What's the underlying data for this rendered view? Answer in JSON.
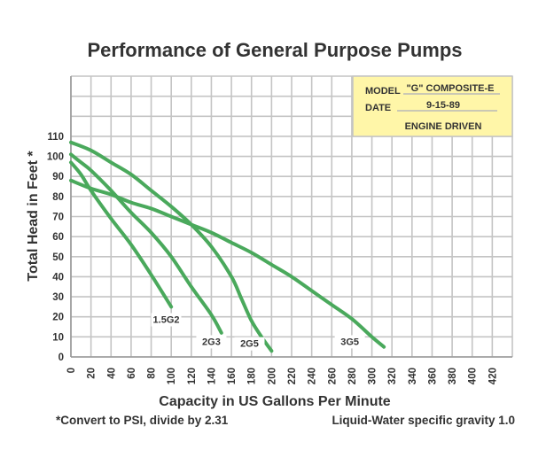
{
  "chart_data": {
    "type": "line",
    "title": "Performance of General Purpose Pumps",
    "xlabel": "Capacity in US Gallons Per Minute",
    "ylabel": "Total Head in Feet *",
    "xlim": [
      0,
      440
    ],
    "ylim": [
      0,
      140
    ],
    "x_ticks": [
      0,
      20,
      40,
      60,
      80,
      100,
      120,
      140,
      160,
      180,
      200,
      220,
      240,
      260,
      280,
      300,
      320,
      340,
      360,
      380,
      400,
      420
    ],
    "y_ticks": [
      0,
      10,
      20,
      30,
      40,
      50,
      60,
      70,
      80,
      90,
      100,
      110
    ],
    "grid": true,
    "line_color": "#4aa95c",
    "series": [
      {
        "name": "1.5G2",
        "points": [
          [
            0,
            97
          ],
          [
            10,
            91
          ],
          [
            20,
            83
          ],
          [
            40,
            69
          ],
          [
            60,
            56
          ],
          [
            80,
            41
          ],
          [
            100,
            25
          ]
        ],
        "label_at": [
          95,
          17
        ]
      },
      {
        "name": "2G3",
        "points": [
          [
            0,
            101
          ],
          [
            10,
            97
          ],
          [
            20,
            93
          ],
          [
            40,
            83
          ],
          [
            60,
            72
          ],
          [
            80,
            62
          ],
          [
            100,
            50
          ],
          [
            120,
            35
          ],
          [
            140,
            21
          ],
          [
            150,
            12
          ]
        ],
        "label_at": [
          140,
          6
        ]
      },
      {
        "name": "2G5",
        "points": [
          [
            0,
            107
          ],
          [
            20,
            103
          ],
          [
            40,
            97
          ],
          [
            60,
            91
          ],
          [
            80,
            83
          ],
          [
            100,
            75
          ],
          [
            120,
            66
          ],
          [
            140,
            55
          ],
          [
            160,
            40
          ],
          [
            170,
            29
          ],
          [
            180,
            18
          ],
          [
            190,
            10
          ],
          [
            200,
            3
          ]
        ],
        "label_at": [
          178,
          5
        ]
      },
      {
        "name": "3G5",
        "points": [
          [
            0,
            88
          ],
          [
            20,
            84
          ],
          [
            40,
            81
          ],
          [
            60,
            77
          ],
          [
            80,
            74
          ],
          [
            100,
            70
          ],
          [
            120,
            66
          ],
          [
            140,
            62
          ],
          [
            160,
            57
          ],
          [
            180,
            52
          ],
          [
            200,
            46
          ],
          [
            220,
            40
          ],
          [
            240,
            33
          ],
          [
            260,
            26
          ],
          [
            280,
            19
          ],
          [
            300,
            10
          ],
          [
            312,
            5
          ]
        ],
        "label_at": [
          278,
          6
        ]
      }
    ],
    "annotations": {
      "footnote": "*Convert to PSI, divide by 2.31",
      "liquid_note": "Liquid-Water specific gravity 1.0"
    }
  },
  "info_box": {
    "model_label": "MODEL",
    "model_value": "\"G\" COMPOSITE-E",
    "date_label": "DATE",
    "date_value": "9-15-89",
    "drive": "ENGINE DRIVEN",
    "background": "#fff6a8"
  }
}
